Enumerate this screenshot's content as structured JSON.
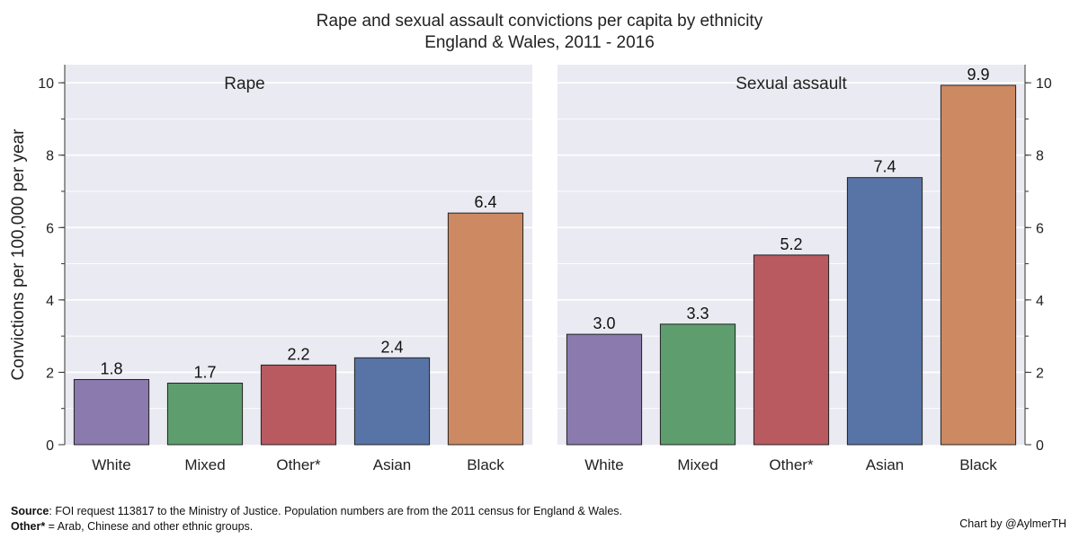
{
  "title": {
    "line1": "Rape and sexual assault convictions per capita by ethnicity",
    "line2": "England & Wales, 2011 - 2016"
  },
  "colors": {
    "White": "#8a7aad",
    "Mixed": "#5e9e6e",
    "Other*": "#b85a60",
    "Asian": "#5874a6",
    "Black": "#cd8962",
    "panel_bg": "#eaeaf2",
    "grid": "#ffffff"
  },
  "chart_data": [
    {
      "type": "bar",
      "title": "Rape",
      "categories": [
        "White",
        "Mixed",
        "Other*",
        "Asian",
        "Black"
      ],
      "values": [
        1.8,
        1.7,
        2.2,
        2.4,
        6.4
      ],
      "value_labels": [
        "1.8",
        "1.7",
        "2.2",
        "2.4",
        "6.4"
      ],
      "xlabel": "",
      "ylabel": "Convictions per 100,000 per year",
      "ylim": [
        0,
        10.5
      ],
      "yticks": [
        0,
        2,
        4,
        6,
        8,
        10
      ],
      "ytick_side": "left",
      "grid": true
    },
    {
      "type": "bar",
      "title": "Sexual assault",
      "categories": [
        "White",
        "Mixed",
        "Other*",
        "Asian",
        "Black"
      ],
      "values": [
        3.05,
        3.33,
        5.24,
        7.38,
        9.93
      ],
      "value_labels": [
        "3.0",
        "3.3",
        "5.2",
        "7.4",
        "9.9"
      ],
      "xlabel": "",
      "ylabel": "",
      "ylim": [
        0,
        10.5
      ],
      "yticks": [
        0,
        2,
        4,
        6,
        8,
        10
      ],
      "ytick_side": "right",
      "grid": true
    }
  ],
  "footer": {
    "source_label": "Source",
    "source_text": ": FOI request 113817 to the Ministry of Justice. Population numbers are from the 2011 census for England & Wales.",
    "other_label": "Other*",
    "other_text": " = Arab, Chinese and other ethnic groups.",
    "credit": "Chart by @AylmerTH"
  }
}
